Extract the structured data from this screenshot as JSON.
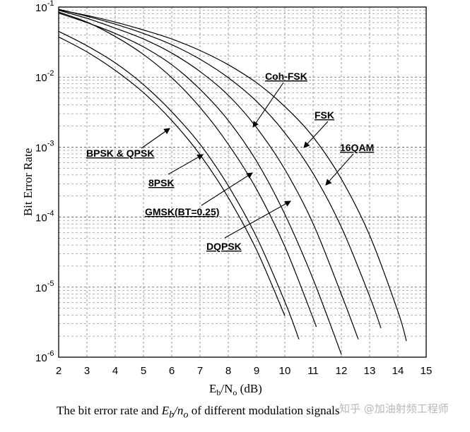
{
  "chart_data": {
    "type": "line",
    "title": "",
    "xlabel": "Eb/No (dB)",
    "ylabel": "Bit Error Rate",
    "xlim": [
      2,
      15
    ],
    "ylim": [
      1e-06,
      0.1
    ],
    "yscale": "log",
    "grid": true,
    "x_ticks": [
      "2",
      "3",
      "4",
      "5",
      "6",
      "7",
      "8",
      "9",
      "10",
      "11",
      "12",
      "13",
      "14",
      "15"
    ],
    "y_ticks": [
      "-1",
      "-2",
      "-3",
      "-4",
      "-5",
      "-6"
    ],
    "series": [
      {
        "name": "BPSK & QPSK",
        "x": [
          2,
          3,
          4,
          5,
          6,
          7,
          8,
          9,
          10
        ],
        "y": [
          0.0375,
          0.0229,
          0.0125,
          0.006,
          0.0024,
          0.00078,
          0.00019,
          3.4e-05,
          3.9e-06
        ]
      },
      {
        "name": "8PSK",
        "x": [
          2,
          3,
          4,
          5,
          6,
          7,
          8,
          9,
          10,
          10.5
        ],
        "y": [
          0.045,
          0.028,
          0.016,
          0.0078,
          0.0032,
          0.0011,
          0.00028,
          5.2e-05,
          6.2e-06,
          1.8e-06
        ]
      },
      {
        "name": "DQPSK",
        "x": [
          2,
          3,
          4,
          5,
          6,
          7,
          8,
          9,
          10,
          11,
          11.1
        ],
        "y": [
          0.085,
          0.061,
          0.038,
          0.021,
          0.0098,
          0.0037,
          0.0011,
          0.00025,
          3.8e-05,
          3.6e-06,
          2.8e-06
        ]
      },
      {
        "name": "GMSK(BT=0.25)",
        "x": [
          2,
          3,
          4,
          5,
          6,
          7,
          8,
          9,
          10,
          11,
          12
        ],
        "y": [
          0.082,
          0.06,
          0.042,
          0.027,
          0.015,
          0.0067,
          0.0024,
          0.00063,
          0.00011,
          1.3e-05,
          1.1e-06
        ]
      },
      {
        "name": "Coh-FSK",
        "x": [
          2,
          3,
          4,
          5,
          6,
          7,
          8,
          9,
          10,
          11,
          12,
          12.6
        ],
        "y": [
          0.09,
          0.069,
          0.05,
          0.035,
          0.022,
          0.012,
          0.0055,
          0.0019,
          0.00048,
          8.1e-05,
          7.9e-06,
          1.8e-06
        ]
      },
      {
        "name": "FSK",
        "x": [
          2,
          3,
          4,
          5,
          6,
          7,
          8,
          9,
          10,
          11,
          12,
          13,
          13.4
        ],
        "y": [
          0.093,
          0.074,
          0.057,
          0.042,
          0.029,
          0.018,
          0.0098,
          0.0045,
          0.0016,
          0.00042,
          7.2e-05,
          7.4e-06,
          2.6e-06
        ]
      },
      {
        "name": "16QAM",
        "x": [
          2,
          3,
          4,
          5,
          6,
          7,
          8,
          9,
          10,
          11,
          12,
          13,
          14,
          14.3
        ],
        "y": [
          0.091,
          0.076,
          0.061,
          0.047,
          0.035,
          0.024,
          0.015,
          0.0083,
          0.0038,
          0.0014,
          0.00035,
          5.5e-05,
          4.5e-06,
          1.7e-06
        ]
      }
    ]
  },
  "caption": {
    "text_before": "The bit error rate and ",
    "eb": "E",
    "eb_sub": "b",
    "slash": "/",
    "no": "n",
    "no_sub": "o",
    "text_after": " of different modulation signals"
  },
  "axis_title_parts": {
    "e": "E",
    "b": "b",
    "n": "N",
    "o": "o",
    "unit": " (dB)",
    "ylabel": "Bit Error Rate"
  },
  "watermark": "知乎 @加油射频工程师"
}
